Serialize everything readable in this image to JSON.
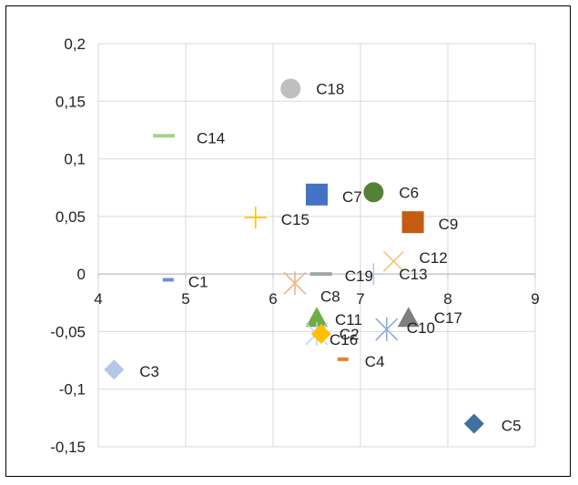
{
  "chart_data": {
    "type": "scatter",
    "title": "",
    "xlabel": "",
    "ylabel": "",
    "xlim": [
      4,
      9
    ],
    "ylim": [
      -0.15,
      0.2
    ],
    "grid": true,
    "x_ticks": [
      "4",
      "5",
      "6",
      "7",
      "8",
      "9"
    ],
    "y_ticks": [
      "-0,15",
      "-0,1",
      "-0,05",
      "0",
      "0,05",
      "0,1",
      "0,15",
      "0,2"
    ],
    "points": [
      {
        "label": "C1",
        "x": 4.8,
        "y": -0.005,
        "marker": "dash",
        "color": "#6f8fd0"
      },
      {
        "label": "C3",
        "x": 4.18,
        "y": -0.083,
        "marker": "diamond",
        "color": "#b4c7e7"
      },
      {
        "label": "C4",
        "x": 6.8,
        "y": -0.074,
        "marker": "dash",
        "color": "#ed7d31"
      },
      {
        "label": "C5",
        "x": 8.3,
        "y": -0.13,
        "marker": "diamond",
        "color": "#41719c"
      },
      {
        "label": "C6",
        "x": 7.15,
        "y": 0.071,
        "marker": "circle",
        "color": "#548235"
      },
      {
        "label": "C7",
        "x": 6.5,
        "y": 0.069,
        "marker": "square",
        "color": "#4472c4"
      },
      {
        "label": "C8",
        "x": 6.25,
        "y": -0.008,
        "marker": "star",
        "color": "#f4b183"
      },
      {
        "label": "C9",
        "x": 7.6,
        "y": 0.045,
        "marker": "square",
        "color": "#c55a11"
      },
      {
        "label": "C10",
        "x": 7.3,
        "y": -0.048,
        "marker": "star",
        "color": "#8faadc"
      },
      {
        "label": "C11",
        "x": 6.5,
        "y": -0.038,
        "marker": "triangle",
        "color": "#70ad47"
      },
      {
        "label": "C12",
        "x": 7.38,
        "y": 0.011,
        "marker": "x",
        "color": "#f4c16b"
      },
      {
        "label": "C13",
        "x": 7.15,
        "y": 0.0,
        "marker": "plus",
        "color": "#b4c7e7"
      },
      {
        "label": "C14",
        "x": 4.75,
        "y": 0.12,
        "marker": "dash",
        "color": "#a9d18e"
      },
      {
        "label": "C15",
        "x": 5.8,
        "y": 0.049,
        "marker": "plus",
        "color": "#ffc000"
      },
      {
        "label": "C16",
        "x": 6.5,
        "y": -0.052,
        "marker": "star",
        "color": "#bdd7ee"
      },
      {
        "label": "C17",
        "x": 7.55,
        "y": -0.038,
        "marker": "triangle",
        "color": "#7f7f7f"
      },
      {
        "label": "C18",
        "x": 6.2,
        "y": 0.161,
        "marker": "circle",
        "color": "#bfbfbf"
      },
      {
        "label": "C19",
        "x": 6.55,
        "y": 0.0,
        "marker": "dash",
        "color": "#a5a5a5"
      },
      {
        "label": "C2",
        "x": 6.55,
        "y": -0.052,
        "marker": "diamond",
        "color": "#ffc000"
      }
    ],
    "label_offsets": {
      "C1": [
        22,
        8
      ],
      "C3": [
        28,
        8
      ],
      "C4": [
        24,
        8
      ],
      "C5": [
        30,
        8
      ],
      "C6": [
        28,
        6
      ],
      "C7": [
        28,
        8
      ],
      "C8": [
        28,
        20
      ],
      "C9": [
        28,
        8
      ],
      "C10": [
        22,
        4
      ],
      "C11": [
        20,
        8
      ],
      "C12": [
        28,
        2
      ],
      "C13": [
        28,
        6
      ],
      "C14": [
        36,
        8
      ],
      "C15": [
        28,
        8
      ],
      "C16": [
        14,
        12
      ],
      "C17": [
        28,
        6
      ],
      "C18": [
        28,
        6
      ],
      "C19": [
        26,
        8
      ],
      "C2": [
        20,
        6
      ]
    }
  }
}
